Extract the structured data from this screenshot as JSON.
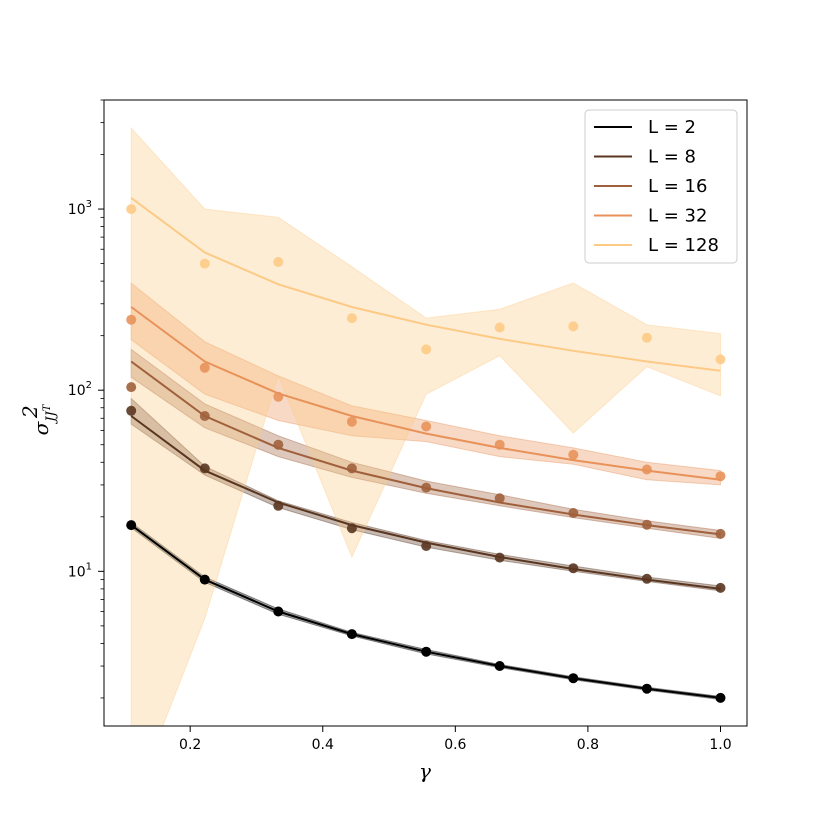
{
  "chart_data": {
    "type": "line",
    "title": "",
    "xlabel": "γ",
    "ylabel_main": "σ",
    "ylabel_sup": "2",
    "ylabel_sub": "JJ",
    "ylabel_subsup": "T",
    "xlim": [
      0.07,
      1.04
    ],
    "ylim": [
      1.4,
      4000
    ],
    "yscale": "log",
    "x_ticks": [
      0.2,
      0.4,
      0.6,
      0.8,
      1.0
    ],
    "x_tick_labels": [
      "0.2",
      "0.4",
      "0.6",
      "0.8",
      "1.0"
    ],
    "y_ticks": [
      {
        "base": "10",
        "exp": "1",
        "value": 10
      },
      {
        "base": "10",
        "exp": "2",
        "value": 100
      },
      {
        "base": "10",
        "exp": "3",
        "value": 1000
      }
    ],
    "x": [
      0.111,
      0.222,
      0.333,
      0.444,
      0.556,
      0.667,
      0.778,
      0.889,
      1.0
    ],
    "legend_position": "top-right",
    "series": [
      {
        "name": "L = 2",
        "color": "#000000",
        "points": [
          18.0,
          9.0,
          6.0,
          4.5,
          3.6,
          3.0,
          2.57,
          2.25,
          2.0
        ],
        "fit": [
          18.0,
          9.0,
          6.0,
          4.5,
          3.6,
          3.0,
          2.57,
          2.25,
          2.0
        ],
        "band_upper": [
          18.6,
          9.3,
          6.2,
          4.6,
          3.7,
          3.06,
          2.62,
          2.29,
          2.04
        ],
        "band_lower": [
          17.4,
          8.7,
          5.8,
          4.4,
          3.5,
          2.94,
          2.52,
          2.21,
          1.96
        ]
      },
      {
        "name": "L = 8",
        "color": "#5a3621",
        "points": [
          77,
          37,
          23,
          17.3,
          13.8,
          11.9,
          10.4,
          9.1,
          8.1
        ],
        "fit": [
          72,
          36,
          24,
          18,
          14.4,
          12.0,
          10.3,
          9.0,
          8.0
        ],
        "band_upper": [
          90,
          38,
          24.5,
          18.6,
          14.8,
          12.4,
          10.7,
          9.3,
          8.3
        ],
        "band_lower": [
          65,
          34,
          22.5,
          17.0,
          13.6,
          11.5,
          10.0,
          8.8,
          7.8
        ]
      },
      {
        "name": "L = 16",
        "color": "#a0603c",
        "points": [
          104,
          72,
          50,
          37,
          29,
          25.3,
          21,
          18.1,
          16.1
        ],
        "fit": [
          144,
          72,
          48,
          36,
          28.8,
          24,
          20.6,
          18,
          16
        ],
        "band_upper": [
          168,
          84,
          56,
          40,
          31.5,
          26.5,
          22,
          19,
          16.8
        ],
        "band_lower": [
          118,
          62,
          43,
          33,
          27,
          23,
          19.8,
          17.3,
          15.2
        ]
      },
      {
        "name": "L = 32",
        "color": "#e8925a",
        "points": [
          245,
          133,
          92,
          67,
          63,
          50,
          44,
          36.5,
          33.5
        ],
        "fit": [
          288,
          144,
          96,
          72,
          57.6,
          48,
          41.1,
          36,
          32
        ],
        "band_upper": [
          390,
          185,
          120,
          82,
          68,
          56,
          48,
          40,
          36
        ],
        "band_lower": [
          190,
          95,
          68,
          56,
          52,
          43,
          39,
          32,
          30
        ]
      },
      {
        "name": "L = 128",
        "color": "#fdca86",
        "points": [
          1000,
          500,
          510,
          250,
          168,
          222,
          225,
          195,
          148
        ],
        "fit": [
          1152,
          576,
          384,
          288,
          230,
          192,
          165,
          144,
          128
        ],
        "band_upper": [
          2800,
          1000,
          900,
          480,
          250,
          280,
          390,
          230,
          205
        ],
        "band_lower": [
          0.5,
          5.5,
          120,
          12,
          95,
          155,
          58,
          135,
          93
        ]
      }
    ]
  }
}
